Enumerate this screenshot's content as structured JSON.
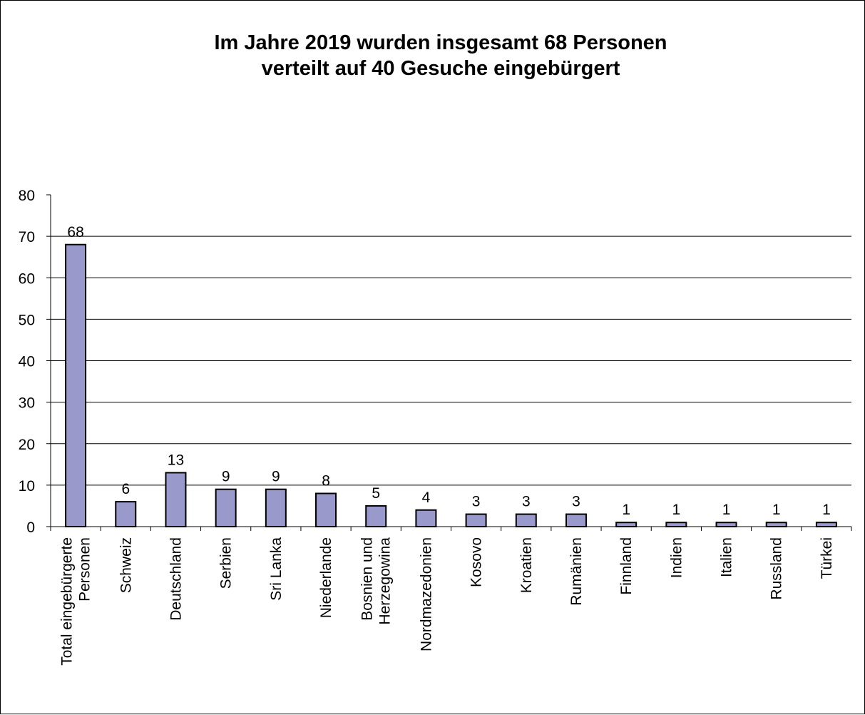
{
  "chart_data": {
    "type": "bar",
    "title_lines": [
      "Im Jahre 2019 wurden insgesamt 68 Personen",
      "verteilt auf 40 Gesuche eingebürgert"
    ],
    "xlabel": "",
    "ylabel": "",
    "ylim": [
      0,
      80
    ],
    "yticks": [
      0,
      10,
      20,
      30,
      40,
      50,
      60,
      70,
      80
    ],
    "grid": true,
    "legend": "none",
    "bar_color": "#9999cc",
    "categories": [
      [
        "Total eingebürgerte",
        "Personen"
      ],
      [
        "Schweiz"
      ],
      [
        "Deutschland"
      ],
      [
        "Serbien"
      ],
      [
        "Sri Lanka"
      ],
      [
        "Niederlande"
      ],
      [
        "Bosnien und",
        "Herzegowina"
      ],
      [
        "Nordmazedonien"
      ],
      [
        "Kosovo"
      ],
      [
        "Kroatien"
      ],
      [
        "Rumänien"
      ],
      [
        "Finnland"
      ],
      [
        "Indien"
      ],
      [
        "Italien"
      ],
      [
        "Russland"
      ],
      [
        "Türkei"
      ]
    ],
    "values": [
      68,
      6,
      13,
      9,
      9,
      8,
      5,
      4,
      3,
      3,
      3,
      1,
      1,
      1,
      1,
      1
    ]
  }
}
